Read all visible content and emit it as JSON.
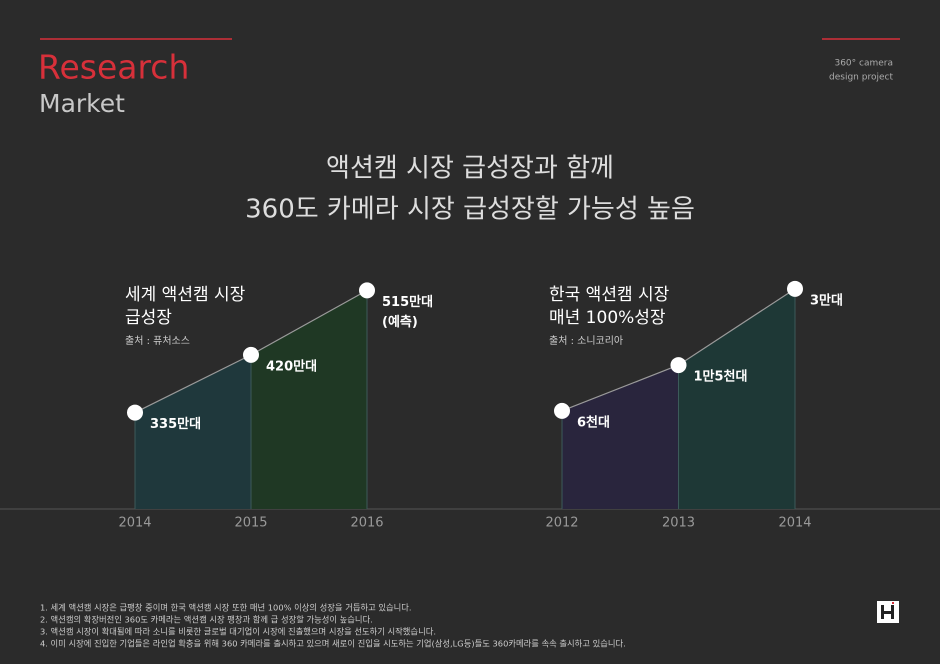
{
  "header": {
    "title": "Research",
    "subtitle": "Market",
    "project_line1": "360° camera",
    "project_line2": "design project"
  },
  "headline": [
    "액션캠 시장 급성장과 함께",
    "360도 카메라 시장 급성장할 가능성 높음"
  ],
  "chart_data": [
    {
      "type": "area",
      "title": [
        "세계 액션캠 시장",
        "급성장"
      ],
      "source": "출처 : 퓨처소스",
      "categories": [
        "2014",
        "2015",
        "2016"
      ],
      "values": [
        3350000,
        4200000,
        5150000
      ],
      "value_labels": [
        "335만대",
        "420만대",
        "515만대"
      ],
      "annotations": [
        "(예측)"
      ],
      "colors": [
        "#1f383c",
        "#1f3824"
      ],
      "ylim": [
        1930000,
        5450000
      ]
    },
    {
      "type": "area",
      "title": [
        "한국 액션캠 시장",
        "매년 100%성장"
      ],
      "source": "출처 : 소니코리아",
      "categories": [
        "2012",
        "2013",
        "2014"
      ],
      "values": [
        6000,
        15000,
        30000
      ],
      "value_labels": [
        "6천대",
        "1만5천대",
        "3만대"
      ],
      "colors": [
        "#29253d",
        "#1e3836"
      ],
      "ylim": [
        -13300,
        33700
      ]
    }
  ],
  "footnotes": [
    "1. 세계 액션캠 시장은 급팽창 중이며 한국 액션캠 시장 또한 매년 100% 이상의 성장을 거듭하고 있습니다.",
    "2. 액션캠의 확장버전인 360도 카메라는 액션캠 시장 팽창과 함께 급 성장할 가능성이 높습니다.",
    "3. 액션캠 시장이 확대됨에 따라 소니를 비롯한 글로벌 대기업이 시장에 진출했으며 시장을 선도하기 시작했습니다.",
    "4. 이미 시장에 진입한 기업들은 라인업 확충을 위해 360 카메라를 출시하고 있으며 새로이 진입을 시도하는 기업(삼성,LG등)들도 360카메라를 속속 출시하고 있습니다."
  ]
}
